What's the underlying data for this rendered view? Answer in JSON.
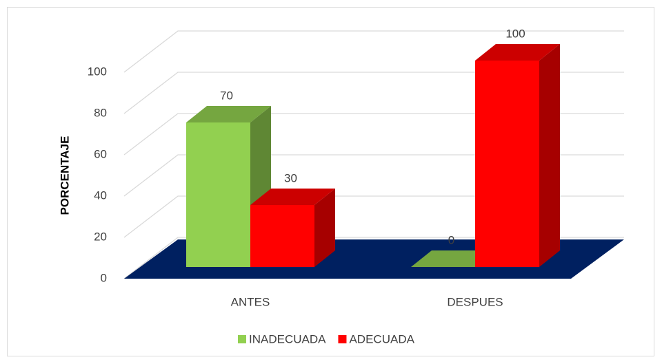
{
  "chart_data": {
    "type": "bar3d",
    "y_label": "PORCENTAJE",
    "categories": [
      "ANTES",
      "DESPUES"
    ],
    "series": [
      {
        "name": "INADECUADA",
        "color": "#92d050",
        "values": [
          70,
          0
        ]
      },
      {
        "name": "ADECUADA",
        "color": "#ff0000",
        "values": [
          30,
          100
        ]
      }
    ],
    "ylim": [
      0,
      100
    ],
    "yticks": [
      0,
      20,
      40,
      60,
      80,
      100
    ],
    "grid": true,
    "legend": "bottom"
  }
}
